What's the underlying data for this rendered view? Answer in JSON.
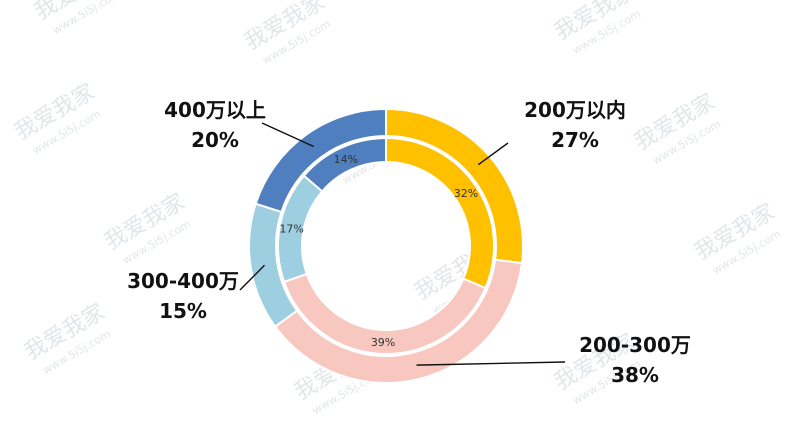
{
  "watermark": {
    "brand": "我爱我家",
    "domain": "www.5i5j.com"
  },
  "chart_data": {
    "type": "donut",
    "outer_ring": {
      "segments": [
        {
          "label": "200万以内",
          "value": 27,
          "value_text": "27%",
          "color": "#ffc000"
        },
        {
          "label": "200-300万",
          "value": 38,
          "value_text": "38%",
          "color": "#f8c7c0"
        },
        {
          "label": "300-400万",
          "value": 15,
          "value_text": "15%",
          "color": "#9dcfe0"
        },
        {
          "label": "400万以上",
          "value": 20,
          "value_text": "20%",
          "color": "#4f7fbe"
        }
      ]
    },
    "inner_ring": {
      "segments": [
        {
          "value": 32,
          "value_text": "32%",
          "color": "#ffc000"
        },
        {
          "value": 39,
          "value_text": "39%",
          "color": "#f8c7c0"
        },
        {
          "value": 17,
          "value_text": "17%",
          "color": "#9dcfe0"
        },
        {
          "value": 14,
          "value_text": "14%",
          "color": "#4f7fbe"
        }
      ]
    },
    "legend": "callouts"
  }
}
